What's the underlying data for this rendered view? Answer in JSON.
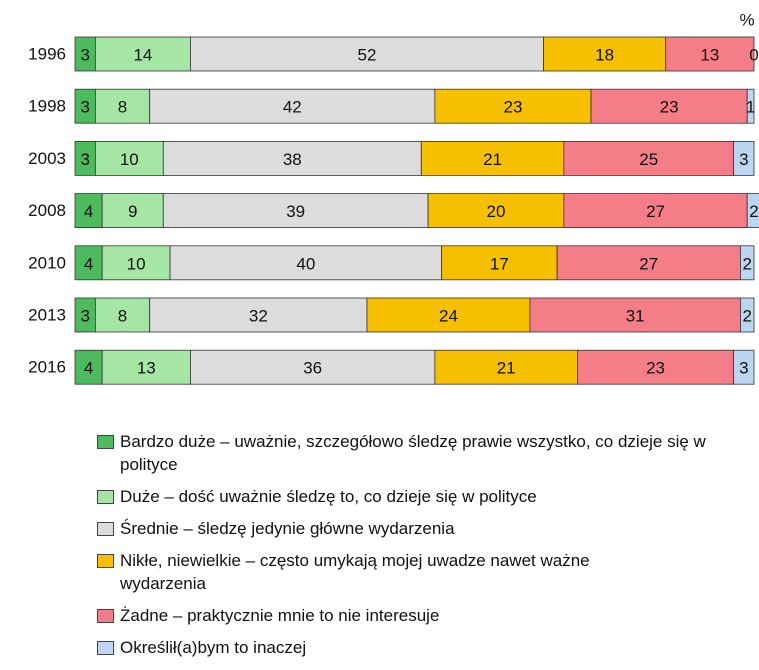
{
  "chart_data": {
    "type": "stacked-bar-horizontal",
    "unit_label": "%",
    "categories": [
      "1996",
      "1998",
      "2003",
      "2008",
      "2010",
      "2013",
      "2016"
    ],
    "series": [
      {
        "name": "Bardzo duże – uważnie, szczegółowo śledzę prawie wszystko, co dzieje się w polityce",
        "color": "#4dba5e",
        "values": [
          3,
          3,
          3,
          4,
          4,
          3,
          4
        ]
      },
      {
        "name": "Duże – dość uważnie śledzę to, co dzieje się w polityce",
        "color": "#a6e6a4",
        "values": [
          14,
          8,
          10,
          9,
          10,
          8,
          13
        ]
      },
      {
        "name": "Średnie – śledzę jedynie główne wydarzenia",
        "color": "#dcdcdc",
        "values": [
          52,
          42,
          38,
          39,
          40,
          32,
          36
        ]
      },
      {
        "name": "Nikłe, niewielkie – często umykają mojej uwadze nawet ważne wydarzenia",
        "color": "#f6bf00",
        "values": [
          18,
          23,
          21,
          20,
          17,
          24,
          21
        ]
      },
      {
        "name": "Żadne – praktycznie mnie to nie interesuje",
        "color": "#f57d87",
        "values": [
          13,
          23,
          25,
          27,
          27,
          31,
          23
        ]
      },
      {
        "name": "Określił(a)bym to inaczej",
        "color": "#bcd6f2",
        "values": [
          0,
          1,
          3,
          2,
          2,
          2,
          3
        ]
      }
    ]
  }
}
